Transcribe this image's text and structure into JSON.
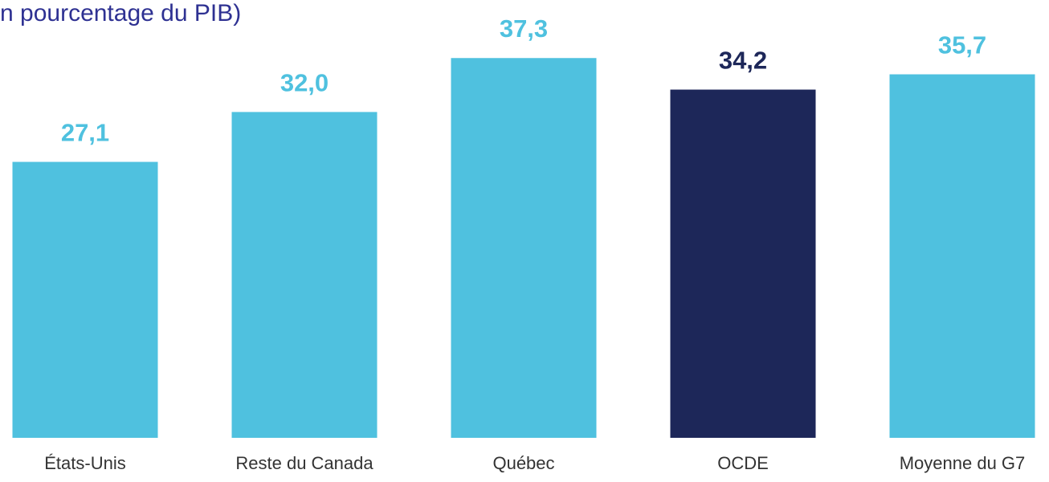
{
  "chart_data": {
    "type": "bar",
    "title": "n pourcentage du PIB)",
    "categories": [
      "États-Unis",
      "Reste du Canada",
      "Québec",
      "OCDE",
      "Moyenne du G7"
    ],
    "values": [
      27.1,
      32.0,
      37.3,
      34.2,
      35.7
    ],
    "value_labels": [
      "27,1",
      "32,0",
      "37,3",
      "34,2",
      "35,7"
    ],
    "colors": [
      "#4fc1df",
      "#4fc1df",
      "#4fc1df",
      "#1d2759",
      "#4fc1df"
    ],
    "ylim": [
      0,
      43
    ]
  }
}
